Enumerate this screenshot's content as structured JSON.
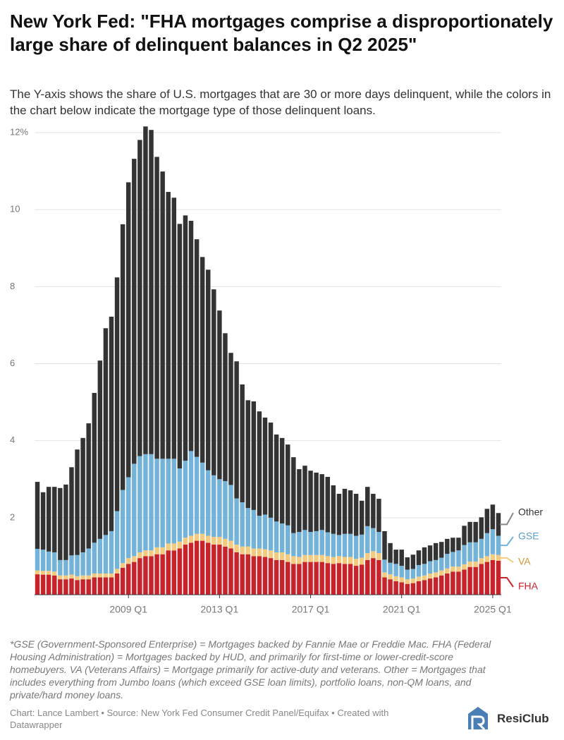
{
  "chart_data": {
    "type": "stacked_bar",
    "title": "New York Fed: \"FHA mortgages comprise a disproportionately large share of delinquent balances in Q2 2025\"",
    "subtitle": "The Y-axis shows the share of U.S. mortgages that are 30 or more days delinquent, while the colors in the chart below indicate the mortgage type of those delinquent loans.",
    "note": "*GSE (Government-Sponsored Enterprise) = Mortgages backed by Fannie Mae or Freddie Mac. FHA (Federal Housing Administration) = Mortgages backed by HUD, and primarily for first-time or lower-credit-score homebuyers. VA (Veterans Affairs) = Mortgage primarily for active-duty and veterans. Other = Mortgages that includes everything from Jumbo loans (which exceed GSE loan limits), portfolio loans, non-QM loans, and private/hard money loans.",
    "source": "Chart: Lance Lambert • Source: New York Fed Consumer Credit Panel/Equifax • Created with Datawrapper",
    "logo_text": "ResiClub",
    "categories": [
      null,
      null,
      null,
      null,
      null,
      null,
      null,
      null,
      null,
      null,
      null,
      null,
      null,
      null,
      null,
      null,
      "2009 Q1",
      null,
      null,
      null,
      null,
      null,
      null,
      null,
      null,
      null,
      null,
      null,
      null,
      null,
      null,
      null,
      "2013 Q1",
      null,
      null,
      null,
      null,
      null,
      null,
      null,
      null,
      null,
      null,
      null,
      null,
      null,
      null,
      null,
      "2017 Q1",
      null,
      null,
      null,
      null,
      null,
      null,
      null,
      null,
      null,
      null,
      null,
      null,
      null,
      null,
      null,
      "2021 Q1",
      null,
      null,
      null,
      null,
      null,
      null,
      null,
      null,
      null,
      null,
      null,
      null,
      null,
      null,
      null,
      "2025 Q1",
      null
    ],
    "series": [
      {
        "name": "FHA",
        "color": "#c7232b",
        "values": [
          0.53,
          0.52,
          0.52,
          0.5,
          0.4,
          0.4,
          0.42,
          0.38,
          0.4,
          0.4,
          0.45,
          0.45,
          0.45,
          0.45,
          0.55,
          0.7,
          0.8,
          0.85,
          0.95,
          1.0,
          1.0,
          1.05,
          1.05,
          1.15,
          1.15,
          1.2,
          1.3,
          1.35,
          1.4,
          1.4,
          1.35,
          1.3,
          1.3,
          1.25,
          1.2,
          1.1,
          1.05,
          1.05,
          1.0,
          1.0,
          0.98,
          0.95,
          0.9,
          0.9,
          0.85,
          0.8,
          0.8,
          0.85,
          0.85,
          0.85,
          0.85,
          0.82,
          0.8,
          0.82,
          0.8,
          0.8,
          0.75,
          0.78,
          0.9,
          0.95,
          0.9,
          0.45,
          0.4,
          0.35,
          0.32,
          0.28,
          0.3,
          0.35,
          0.38,
          0.42,
          0.45,
          0.5,
          0.55,
          0.6,
          0.6,
          0.65,
          0.72,
          0.72,
          0.8,
          0.85,
          0.9,
          0.88
        ]
      },
      {
        "name": "VA",
        "color": "#f3cb7f",
        "values": [
          0.1,
          0.1,
          0.1,
          0.1,
          0.1,
          0.1,
          0.1,
          0.1,
          0.1,
          0.1,
          0.1,
          0.1,
          0.1,
          0.1,
          0.12,
          0.12,
          0.15,
          0.15,
          0.15,
          0.15,
          0.15,
          0.18,
          0.18,
          0.18,
          0.18,
          0.18,
          0.18,
          0.18,
          0.18,
          0.18,
          0.18,
          0.2,
          0.2,
          0.2,
          0.2,
          0.2,
          0.2,
          0.2,
          0.2,
          0.2,
          0.2,
          0.2,
          0.2,
          0.2,
          0.2,
          0.2,
          0.18,
          0.18,
          0.18,
          0.18,
          0.18,
          0.18,
          0.18,
          0.18,
          0.18,
          0.18,
          0.18,
          0.18,
          0.18,
          0.18,
          0.18,
          0.13,
          0.13,
          0.13,
          0.13,
          0.12,
          0.12,
          0.12,
          0.12,
          0.13,
          0.13,
          0.13,
          0.13,
          0.13,
          0.13,
          0.14,
          0.14,
          0.14,
          0.15,
          0.15,
          0.15,
          0.15
        ]
      },
      {
        "name": "GSE",
        "color": "#73b2d9",
        "values": [
          0.56,
          0.55,
          0.5,
          0.5,
          0.4,
          0.4,
          0.5,
          0.55,
          0.6,
          0.7,
          0.8,
          0.9,
          1.0,
          1.1,
          1.5,
          1.9,
          2.1,
          2.4,
          2.5,
          2.5,
          2.5,
          2.3,
          2.3,
          2.2,
          2.2,
          1.9,
          2.0,
          2.2,
          2.0,
          1.85,
          1.7,
          1.6,
          1.5,
          1.5,
          1.45,
          1.2,
          1.15,
          1.0,
          1.0,
          0.85,
          0.9,
          0.85,
          0.8,
          0.75,
          0.75,
          0.6,
          0.65,
          0.65,
          0.6,
          0.62,
          0.65,
          0.62,
          0.6,
          0.55,
          0.6,
          0.6,
          0.6,
          0.6,
          0.7,
          0.6,
          0.55,
          0.33,
          0.3,
          0.32,
          0.3,
          0.25,
          0.25,
          0.3,
          0.3,
          0.32,
          0.32,
          0.33,
          0.38,
          0.38,
          0.42,
          0.5,
          0.5,
          0.5,
          0.5,
          0.6,
          0.65,
          0.5
        ]
      },
      {
        "name": "Other",
        "color": "#333333",
        "values": [
          1.74,
          1.49,
          1.68,
          1.7,
          1.87,
          1.96,
          2.29,
          2.74,
          2.97,
          3.25,
          3.89,
          4.63,
          5.37,
          5.57,
          6.07,
          6.9,
          7.66,
          7.92,
          8.21,
          8.51,
          8.42,
          7.84,
          7.46,
          6.93,
          6.78,
          6.35,
          6.37,
          5.98,
          5.65,
          5.34,
          5.21,
          4.83,
          4.38,
          3.84,
          3.43,
          3.56,
          3.06,
          2.8,
          2.82,
          2.71,
          2.52,
          2.47,
          2.26,
          2.22,
          2.1,
          1.97,
          1.63,
          1.67,
          1.59,
          1.52,
          1.45,
          1.44,
          1.26,
          1.07,
          1.17,
          1.13,
          1.09,
          0.88,
          1.02,
          0.89,
          0.86,
          0.74,
          0.51,
          0.37,
          0.42,
          0.32,
          0.37,
          0.38,
          0.43,
          0.41,
          0.44,
          0.41,
          0.39,
          0.37,
          0.33,
          0.5,
          0.53,
          0.53,
          0.56,
          0.63,
          0.64,
          0.59
        ]
      }
    ],
    "ylim": [
      0,
      12
    ],
    "yticks": [
      2,
      4,
      6,
      8,
      10,
      {
        "value": 12,
        "label": "12%"
      }
    ],
    "grid": true
  }
}
